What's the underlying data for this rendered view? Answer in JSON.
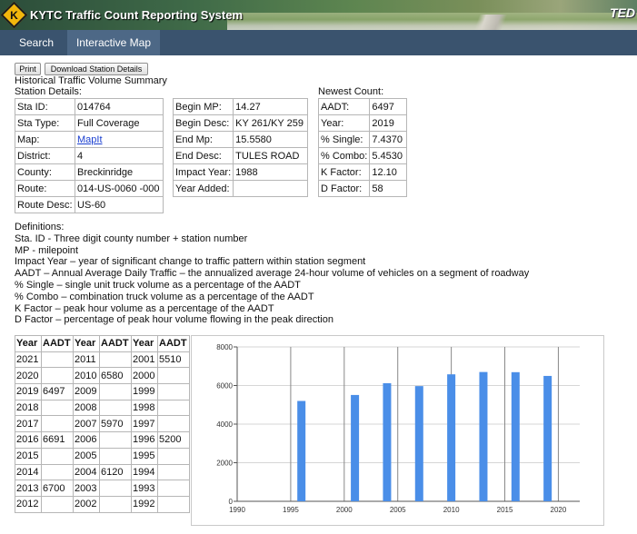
{
  "header": {
    "logo_letter": "K",
    "title": "KYTC Traffic Count Reporting System",
    "partner_logo": "TED"
  },
  "nav": {
    "items": [
      {
        "label": "Search"
      },
      {
        "label": "Interactive Map"
      }
    ]
  },
  "toolbar": {
    "print_label": "Print",
    "download_label": "Download Station Details"
  },
  "page": {
    "heading": "Historical Traffic Volume Summary",
    "station_details_label": "Station Details:",
    "newest_count_label": "Newest Count:"
  },
  "station": {
    "rows": [
      {
        "label": "Sta ID:",
        "value": "014764"
      },
      {
        "label": "Sta Type:",
        "value": "Full Coverage"
      },
      {
        "label": "Map:",
        "value": "MapIt"
      },
      {
        "label": "District:",
        "value": "4"
      },
      {
        "label": "County:",
        "value": "Breckinridge"
      },
      {
        "label": "Route:",
        "value": "014-US-0060 -000"
      },
      {
        "label": "Route Desc:",
        "value": "US-60"
      }
    ]
  },
  "segment": {
    "rows": [
      {
        "label": "Begin MP:",
        "value": "14.27"
      },
      {
        "label": "Begin Desc:",
        "value": "KY 261/KY 259"
      },
      {
        "label": "End Mp:",
        "value": "15.5580"
      },
      {
        "label": "End Desc:",
        "value": "TULES ROAD"
      },
      {
        "label": "Impact Year:",
        "value": "1988"
      },
      {
        "label": "Year Added:",
        "value": ""
      }
    ]
  },
  "newest": {
    "rows": [
      {
        "label": "AADT:",
        "value": "6497"
      },
      {
        "label": "Year:",
        "value": "2019"
      },
      {
        "label": "% Single:",
        "value": "7.4370"
      },
      {
        "label": "% Combo:",
        "value": "5.4530"
      },
      {
        "label": "K Factor:",
        "value": "12.10"
      },
      {
        "label": "D Factor:",
        "value": "58"
      }
    ]
  },
  "definitions": {
    "title": "Definitions:",
    "lines": [
      "Sta. ID - Three digit county number + station number",
      "MP - milepoint",
      "Impact Year – year of significant change to traffic pattern within station segment",
      "AADT – Annual Average Daily Traffic – the annualized average 24-hour volume of vehicles on a segment of roadway",
      "% Single – single unit truck volume as a percentage of the AADT",
      "% Combo – combination truck volume as a percentage of the AADT",
      "K Factor – peak hour volume as a percentage of the AADT",
      "D Factor – percentage of peak hour volume flowing in the peak direction"
    ]
  },
  "history": {
    "headers": [
      "Year",
      "AADT",
      "Year",
      "AADT",
      "Year",
      "AADT"
    ],
    "rows": [
      [
        "2021",
        "",
        "2011",
        "",
        "2001",
        "5510"
      ],
      [
        "2020",
        "",
        "2010",
        "6580",
        "2000",
        ""
      ],
      [
        "2019",
        "6497",
        "2009",
        "",
        "1999",
        ""
      ],
      [
        "2018",
        "",
        "2008",
        "",
        "1998",
        ""
      ],
      [
        "2017",
        "",
        "2007",
        "5970",
        "1997",
        ""
      ],
      [
        "2016",
        "6691",
        "2006",
        "",
        "1996",
        "5200"
      ],
      [
        "2015",
        "",
        "2005",
        "",
        "1995",
        ""
      ],
      [
        "2014",
        "",
        "2004",
        "6120",
        "1994",
        ""
      ],
      [
        "2013",
        "6700",
        "2003",
        "",
        "1993",
        ""
      ],
      [
        "2012",
        "",
        "2002",
        "",
        "1992",
        ""
      ]
    ]
  },
  "colors": {
    "bar": "#4a8ee8",
    "nav": "#3a536e"
  },
  "chart_data": {
    "type": "bar",
    "x": [
      1996,
      2001,
      2004,
      2007,
      2010,
      2013,
      2016,
      2019
    ],
    "values": [
      5200,
      5510,
      6120,
      5970,
      6580,
      6700,
      6691,
      6497
    ],
    "xlim": [
      1990,
      2022
    ],
    "ylim": [
      0,
      8000
    ],
    "x_ticks": [
      1990,
      1995,
      2000,
      2005,
      2010,
      2015,
      2020
    ],
    "y_ticks": [
      0,
      2000,
      4000,
      6000,
      8000
    ],
    "grid": true,
    "title": "",
    "xlabel": "",
    "ylabel": ""
  }
}
